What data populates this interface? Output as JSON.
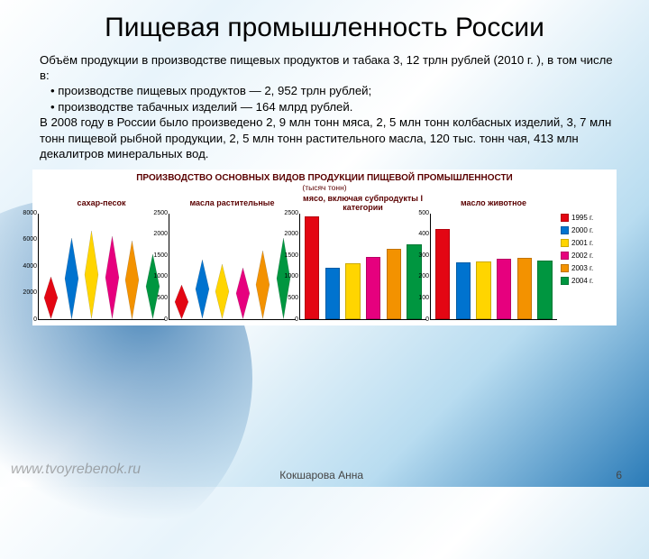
{
  "title": "Пищевая промышленность России",
  "para1": "Объём продукции в производстве пищевых продуктов и табака 3, 12 трлн рублей (2010 г. ), в том числе в:",
  "bullets": [
    "производстве пищевых продуктов — 2, 952 трлн рублей;",
    "производстве табачных изделий — 164 млрд рублей."
  ],
  "para2": "В 2008 году в России было произведено 2, 9 млн тонн мяса, 2, 5 млн тонн колбасных изделий, 3, 7 млн тонн пищевой рыбной продукции, 2, 5 млн тонн растительного масла, 120 тыс. тонн чая, 413 млн декалитров минеральных вод.",
  "chart": {
    "title": "ПРОИЗВОДСТВО ОСНОВНЫХ ВИДОВ ПРОДУКЦИИ ПИЩЕВОЙ ПРОМЫШЛЕННОСТИ",
    "subtitle": "(тысяч тонн)",
    "colors": [
      "#e30613",
      "#0073cf",
      "#ffd500",
      "#e6007e",
      "#f39200",
      "#009640"
    ],
    "legend_labels": [
      "1995 г.",
      "2000 г.",
      "2001 г.",
      "2002 г.",
      "2003 г.",
      "2004 г."
    ],
    "panels": [
      {
        "title": "сахар-песок",
        "type": "diamond",
        "ymax": 8000,
        "ytick_step": 2000,
        "ylabels": [
          "8000",
          "6000",
          "4000",
          "2000",
          "0"
        ],
        "values": [
          3150,
          6100,
          6600,
          6200,
          5900,
          4850
        ]
      },
      {
        "title": "масла растительные",
        "type": "diamond",
        "ymax": 2500,
        "ytick_step": 500,
        "ylabels": [
          "2500",
          "2000",
          "1500",
          "1000",
          "500",
          "0"
        ],
        "values": [
          800,
          1380,
          1280,
          1200,
          1600,
          1900
        ]
      },
      {
        "title": "мясо, включая субпродукты I категории",
        "type": "bar",
        "ymax": 2500,
        "ytick_step": 500,
        "ylabels": [
          "2500",
          "2000",
          "1500",
          "1000",
          "500",
          "0"
        ],
        "values": [
          2400,
          1200,
          1300,
          1450,
          1650,
          1750
        ]
      },
      {
        "title": "масло животное",
        "type": "bar",
        "ymax": 500,
        "ytick_step": 100,
        "ylabels": [
          "500",
          "400",
          "300",
          "200",
          "100",
          "0"
        ],
        "values": [
          420,
          265,
          270,
          280,
          285,
          275
        ]
      }
    ]
  },
  "footer_author": "Кокшарова Анна",
  "footer_page": "6",
  "watermark": "www.tvoyrebenok.ru"
}
